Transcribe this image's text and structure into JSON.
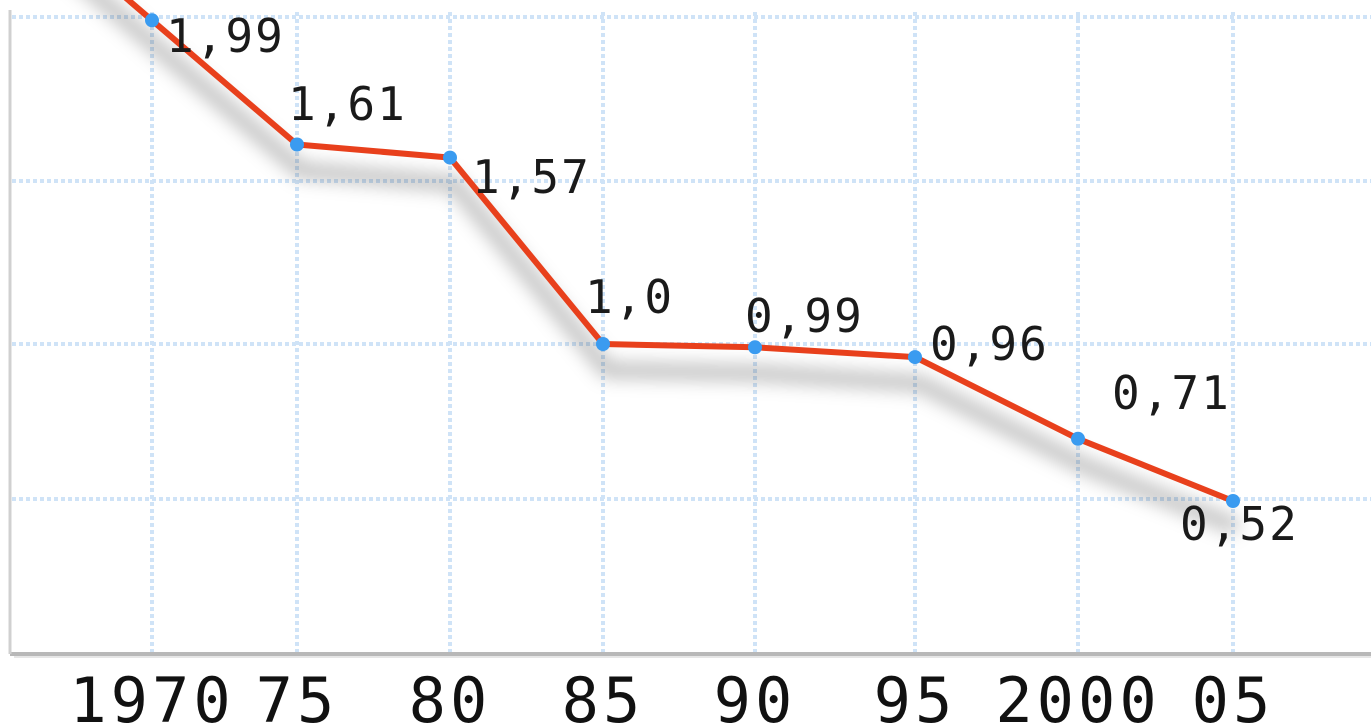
{
  "chart_data": {
    "type": "line",
    "categories": [
      "1970",
      "75",
      "80",
      "85",
      "90",
      "95",
      "2000",
      "05"
    ],
    "values": [
      1.99,
      1.61,
      1.57,
      1.0,
      0.99,
      0.96,
      0.71,
      0.52
    ],
    "data_labels": [
      "1,99",
      "1,61",
      "1,57",
      "1,0",
      "0,99",
      "0,96",
      "0,71",
      "0,52"
    ],
    "title": "",
    "xlabel": "",
    "ylabel": "",
    "grid": true,
    "legend": "none",
    "colors": {
      "line": "#e8401c",
      "marker": "#3a9bf0",
      "grid": "#cfe3f7",
      "frame": "#c8c8c8"
    }
  }
}
